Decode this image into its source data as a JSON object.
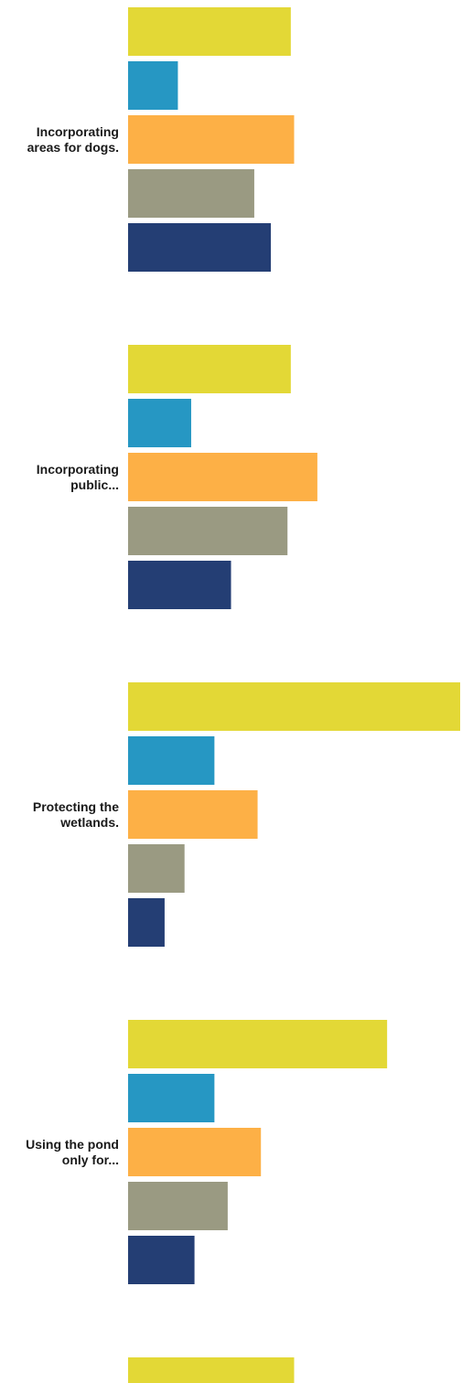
{
  "chart_data": {
    "type": "bar",
    "orientation": "horizontal",
    "title": "",
    "xlabel": "",
    "ylabel": "",
    "grid": false,
    "legend": "none",
    "xlim": [
      0,
      100
    ],
    "categories": [
      [
        "Incorporating",
        "areas for dogs."
      ],
      [
        "Incorporating",
        "public..."
      ],
      [
        "Protecting the",
        "wetlands."
      ],
      [
        "Using the pond",
        "only for..."
      ],
      [
        "",
        ""
      ]
    ],
    "colors": [
      "#e3d836",
      "#2697c3",
      "#fdb046",
      "#9a9a82",
      "#243e74"
    ],
    "series": [
      {
        "values": [
          49,
          49,
          100,
          78,
          50
        ]
      },
      {
        "values": [
          15,
          19,
          26,
          26,
          null
        ]
      },
      {
        "values": [
          50,
          57,
          39,
          40,
          null
        ]
      },
      {
        "values": [
          38,
          48,
          17,
          30,
          null
        ]
      },
      {
        "values": [
          43,
          31,
          11,
          20,
          null
        ]
      }
    ]
  }
}
